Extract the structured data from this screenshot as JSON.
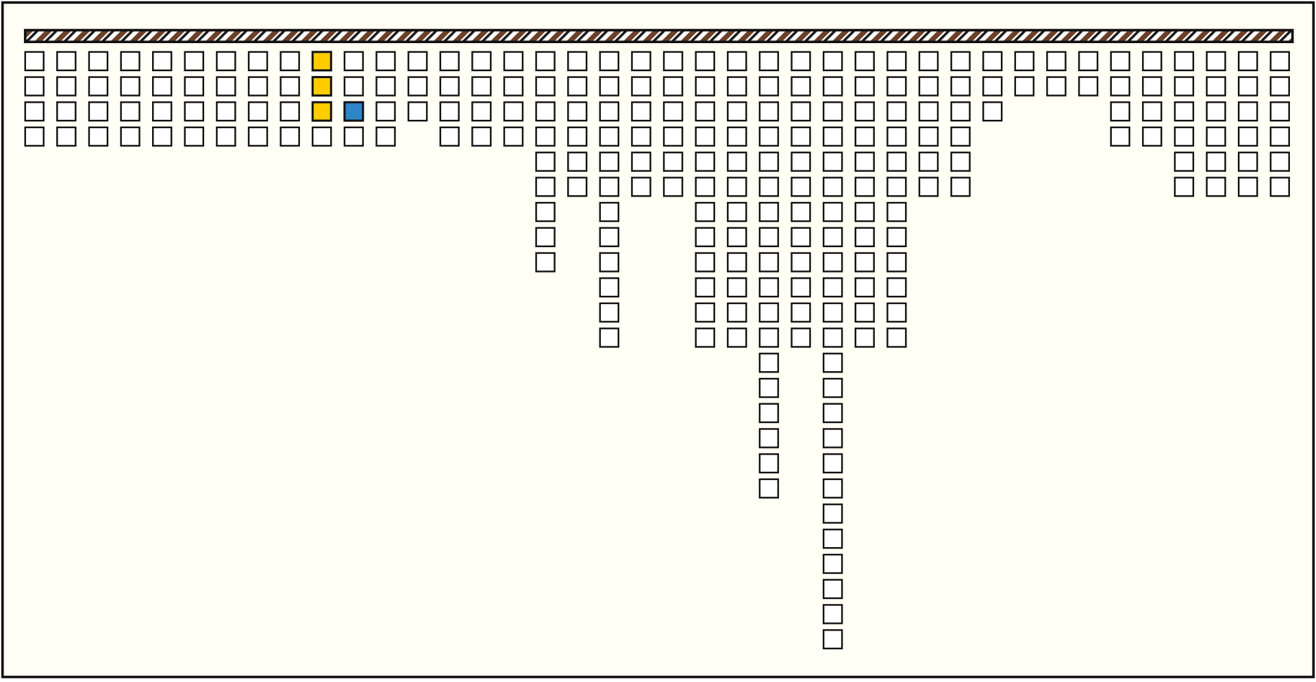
{
  "columns": [
    4,
    4,
    4,
    4,
    4,
    4,
    4,
    4,
    4,
    4,
    4,
    4,
    3,
    4,
    4,
    4,
    9,
    6,
    12,
    6,
    6,
    12,
    12,
    18,
    12,
    24,
    12,
    12,
    6,
    6,
    3,
    2,
    2,
    2,
    4,
    4,
    6,
    6,
    6,
    6
  ],
  "highlights": [
    {
      "column": 9,
      "row": 0,
      "color": "#ffcc00"
    },
    {
      "column": 9,
      "row": 1,
      "color": "#ffcc00"
    },
    {
      "column": 9,
      "row": 2,
      "color": "#ffcc00"
    },
    {
      "column": 10,
      "row": 2,
      "color": "#2f86c6"
    }
  ]
}
